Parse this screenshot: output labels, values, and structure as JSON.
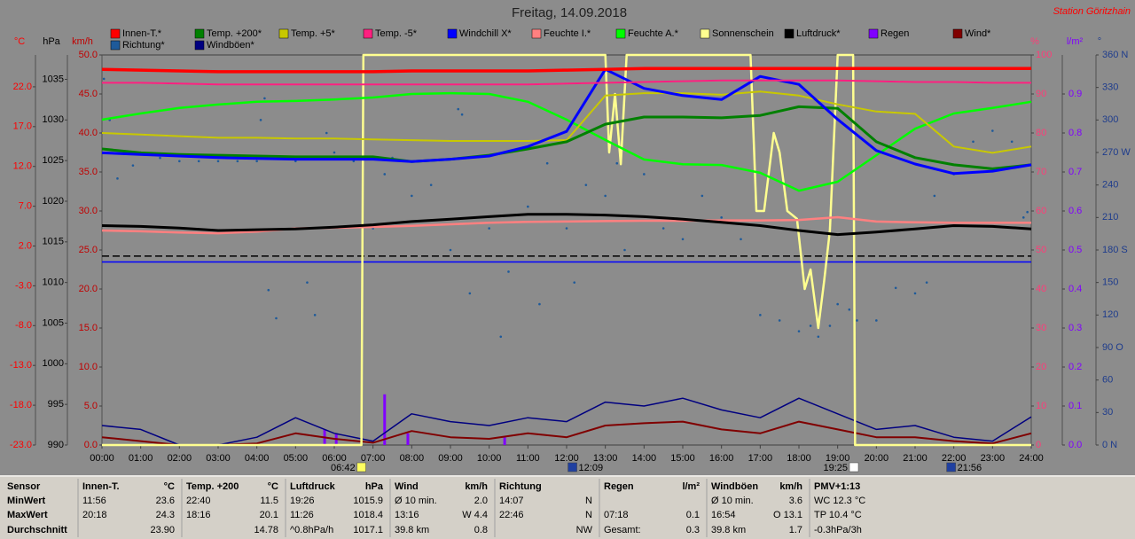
{
  "chart_data": {
    "type": "line",
    "title": "Freitag, 14.09.2018",
    "station": "Station Göritzhain",
    "xlim": [
      0,
      24
    ],
    "xticks": [
      {
        "value": 0,
        "label": "00:00"
      },
      {
        "value": 1,
        "label": "01:00"
      },
      {
        "value": 2,
        "label": "02:00"
      },
      {
        "value": 3,
        "label": "03:00"
      },
      {
        "value": 4,
        "label": "04:00"
      },
      {
        "value": 5,
        "label": "05:00"
      },
      {
        "value": 6,
        "label": "06:00"
      },
      {
        "value": 7,
        "label": "07:00"
      },
      {
        "value": 8,
        "label": "08:00"
      },
      {
        "value": 9,
        "label": "09:00"
      },
      {
        "value": 10,
        "label": "10:00"
      },
      {
        "value": 11,
        "label": "11:00"
      },
      {
        "value": 12,
        "label": "12:00"
      },
      {
        "value": 13,
        "label": "13:00"
      },
      {
        "value": 14,
        "label": "14:00"
      },
      {
        "value": 15,
        "label": "15:00"
      },
      {
        "value": 16,
        "label": "16:00"
      },
      {
        "value": 17,
        "label": "17:00"
      },
      {
        "value": 18,
        "label": "18:00"
      },
      {
        "value": 19,
        "label": "19:00"
      },
      {
        "value": 20,
        "label": "20:00"
      },
      {
        "value": 21,
        "label": "21:00"
      },
      {
        "value": 22,
        "label": "22:00"
      },
      {
        "value": 23,
        "label": "23:00"
      },
      {
        "value": 24,
        "label": "24:00"
      }
    ],
    "x": [
      0,
      1,
      2,
      3,
      4,
      5,
      6,
      7,
      8,
      9,
      10,
      11,
      12,
      13,
      14,
      15,
      16,
      17,
      18,
      19,
      20,
      21,
      22,
      23,
      24
    ],
    "axes": {
      "temp": {
        "label": "°C",
        "side": "left",
        "color": "#ff0000",
        "ylim": [
          -23,
          26
        ],
        "yticks": [
          {
            "value": -23,
            "label": "-23.0"
          },
          {
            "value": -18,
            "label": "-18.0"
          },
          {
            "value": -13,
            "label": "-13.0"
          },
          {
            "value": -8,
            "label": "-8.0"
          },
          {
            "value": -3,
            "label": "-3.0"
          },
          {
            "value": 2,
            "label": "2.0"
          },
          {
            "value": 7,
            "label": "7.0"
          },
          {
            "value": 12,
            "label": "12.0"
          },
          {
            "value": 17,
            "label": "17.0"
          },
          {
            "value": 22,
            "label": "22.0"
          }
        ]
      },
      "press": {
        "label": "hPa",
        "side": "left",
        "color": "#000000",
        "ylim": [
          990,
          1038
        ],
        "yticks": [
          990,
          995,
          1000,
          1005,
          1010,
          1015,
          1020,
          1025,
          1030,
          1035
        ]
      },
      "speed": {
        "label": "km/h",
        "side": "left",
        "color": "#c00000",
        "ylim": [
          0,
          50
        ],
        "yticks": [
          {
            "value": 0,
            "label": "0.0"
          },
          {
            "value": 5,
            "label": "5.0"
          },
          {
            "value": 10,
            "label": "10.0"
          },
          {
            "value": 15,
            "label": "15.0"
          },
          {
            "value": 20,
            "label": "20.0"
          },
          {
            "value": 25,
            "label": "25.0"
          },
          {
            "value": 30,
            "label": "30.0"
          },
          {
            "value": 35,
            "label": "35.0"
          },
          {
            "value": 40,
            "label": "40.0"
          },
          {
            "value": 45,
            "label": "45.0"
          },
          {
            "value": 50,
            "label": "50.0"
          }
        ]
      },
      "hum": {
        "label": "%",
        "side": "right",
        "color": "#ff3c78",
        "ylim": [
          0,
          100
        ],
        "yticks": [
          0,
          10,
          20,
          30,
          40,
          50,
          60,
          70,
          80,
          90,
          100
        ]
      },
      "rain": {
        "label": "l/m²",
        "side": "right",
        "color": "#8000ff",
        "ylim": [
          0,
          1.0
        ],
        "yticks": [
          {
            "value": 0,
            "label": "0.0"
          },
          0.1,
          0.2,
          0.3,
          0.4,
          0.5,
          0.6,
          0.7,
          0.8,
          0.9
        ]
      },
      "dir": {
        "label": "°",
        "side": "right",
        "color": "#1e3c8c",
        "ylim": [
          0,
          360
        ],
        "yticks": [
          {
            "value": 0,
            "label": "0 N"
          },
          30,
          60,
          {
            "value": 90,
            "label": "90 O"
          },
          120,
          150,
          {
            "value": 180,
            "label": "180 S"
          },
          210,
          240,
          {
            "value": 270,
            "label": "270 W"
          },
          300,
          330,
          {
            "value": 360,
            "label": "360 N"
          }
        ]
      }
    },
    "reference_lines": [
      {
        "axis": "press",
        "value": 1013.25,
        "color": "#000000",
        "dashed": true
      },
      {
        "axis": "temp",
        "value": 0,
        "color": "#0000ff",
        "dashed": false
      }
    ],
    "series": [
      {
        "name": "Innen-T.*",
        "axis": "temp",
        "color": "#ff0000",
        "width": 3.5,
        "values": [
          24.2,
          24.1,
          24.0,
          23.9,
          23.9,
          23.9,
          23.9,
          23.9,
          24.0,
          24.0,
          24.0,
          24.0,
          24.1,
          24.2,
          24.3,
          24.3,
          24.3,
          24.3,
          24.3,
          24.3,
          24.3,
          24.3,
          24.3,
          24.3,
          24.3
        ]
      },
      {
        "name": "Temp. +200*",
        "axis": "temp",
        "color": "#008000",
        "width": 3,
        "values": [
          14.2,
          13.7,
          13.5,
          13.4,
          13.3,
          13.2,
          13.2,
          13.2,
          12.6,
          12.9,
          13.4,
          14.2,
          15.1,
          17.3,
          18.2,
          18.2,
          18.1,
          18.4,
          19.5,
          19.3,
          15.1,
          13.1,
          12.2,
          11.7,
          12.2
        ]
      },
      {
        "name": "Temp. +5*",
        "axis": "temp",
        "color": "#c8c800",
        "width": 2,
        "values": [
          16.2,
          16.0,
          15.8,
          15.6,
          15.6,
          15.5,
          15.5,
          15.4,
          15.3,
          15.2,
          15.2,
          15.2,
          15.3,
          20.9,
          21.2,
          21.2,
          21.0,
          21.4,
          20.9,
          19.8,
          18.9,
          18.6,
          14.5,
          13.7,
          14.5
        ]
      },
      {
        "name": "Temp. -5*",
        "axis": "temp",
        "color": "#ff2080",
        "width": 2,
        "values": [
          22.5,
          22.5,
          22.4,
          22.3,
          22.3,
          22.3,
          22.3,
          22.3,
          22.3,
          22.3,
          22.3,
          22.3,
          22.4,
          22.5,
          22.6,
          22.7,
          22.8,
          22.8,
          22.8,
          22.8,
          22.7,
          22.6,
          22.6,
          22.5,
          22.5
        ]
      },
      {
        "name": "Windchill X*",
        "axis": "temp",
        "color": "#0000ff",
        "width": 3,
        "values": [
          13.7,
          13.5,
          13.3,
          13.1,
          13.0,
          12.9,
          12.9,
          12.9,
          12.6,
          12.9,
          13.3,
          14.5,
          16.4,
          24.2,
          21.8,
          20.9,
          20.4,
          23.3,
          22.3,
          17.9,
          14.0,
          12.3,
          11.1,
          11.4,
          12.2
        ]
      },
      {
        "name": "Feuchte I.*",
        "axis": "hum",
        "color": "#ff8080",
        "width": 2.5,
        "values": [
          55.0,
          54.8,
          54.5,
          54.3,
          54.7,
          55.5,
          55.7,
          55.9,
          56.2,
          56.6,
          57.0,
          57.2,
          57.3,
          57.4,
          57.5,
          57.5,
          57.6,
          57.6,
          57.7,
          58.4,
          57.3,
          57.1,
          57.0,
          57.0,
          57.0
        ]
      },
      {
        "name": "Feuchte A.*",
        "axis": "hum",
        "color": "#00ff00",
        "width": 2.5,
        "values": [
          83.4,
          85.0,
          86.4,
          87.3,
          88.0,
          88.2,
          88.6,
          89.1,
          90.0,
          90.2,
          90.0,
          88.0,
          83.4,
          78.2,
          73.2,
          72.0,
          71.8,
          69.8,
          65.2,
          67.5,
          74.3,
          81.1,
          85.0,
          86.4,
          88.0
        ]
      },
      {
        "name": "Sonnenschein",
        "axis": "hum",
        "color": "#ffff90",
        "width": 2.5,
        "x": [
          0,
          6.7,
          6.75,
          13.0,
          13.1,
          13.25,
          13.4,
          13.55,
          16.75,
          16.9,
          17.1,
          17.35,
          17.5,
          17.7,
          17.95,
          18.15,
          18.3,
          18.5,
          18.65,
          18.8,
          19.0,
          19.4,
          19.45,
          24
        ],
        "values": [
          0,
          0,
          100,
          100,
          75,
          90,
          72,
          100,
          100,
          60,
          60,
          80,
          75,
          60,
          58,
          40,
          45,
          30,
          42,
          55,
          100,
          100,
          0,
          0
        ]
      },
      {
        "name": "Luftdruck*",
        "axis": "press",
        "color": "#000000",
        "width": 3,
        "values": [
          1017.0,
          1016.9,
          1016.7,
          1016.4,
          1016.5,
          1016.6,
          1016.8,
          1017.1,
          1017.5,
          1017.8,
          1018.1,
          1018.4,
          1018.4,
          1018.3,
          1018.1,
          1017.8,
          1017.4,
          1017.0,
          1016.4,
          1015.9,
          1016.2,
          1016.6,
          1017.0,
          1016.9,
          1016.6
        ]
      },
      {
        "name": "Regen",
        "axis": "rain",
        "color": "#8000ff",
        "kind": "bar",
        "x": [
          5.75,
          6.05,
          7.3,
          7.9,
          10.4
        ],
        "values": [
          0.04,
          0.03,
          0.13,
          0.03,
          0.02
        ]
      },
      {
        "name": "Wind*",
        "axis": "speed",
        "color": "#800000",
        "width": 2,
        "values": [
          1.0,
          0.5,
          0,
          0,
          0.2,
          1.5,
          0.8,
          0.3,
          1.8,
          1.0,
          0.8,
          1.5,
          1.0,
          2.5,
          2.8,
          3.0,
          2.0,
          1.5,
          3.0,
          2.0,
          1.0,
          1.0,
          0.5,
          0.2,
          1.5
        ]
      },
      {
        "name": "Richtung*",
        "axis": "dir",
        "color": "#1e5a9a",
        "kind": "scatter",
        "x": [
          0.05,
          0.2,
          0.4,
          0.8,
          1.0,
          1.5,
          2.0,
          2.5,
          3.0,
          3.5,
          4.0,
          4.1,
          4.2,
          4.3,
          4.5,
          5.0,
          5.3,
          5.5,
          5.8,
          6.0,
          6.5,
          7.0,
          7.3,
          7.5,
          8.0,
          8.5,
          9.0,
          9.2,
          9.3,
          9.5,
          10.0,
          10.3,
          10.5,
          11.0,
          11.3,
          11.5,
          12.0,
          12.2,
          12.5,
          13.0,
          13.3,
          13.5,
          14.0,
          14.5,
          15.0,
          15.5,
          16.0,
          16.5,
          17.0,
          17.5,
          18.0,
          18.3,
          18.5,
          18.8,
          19.0,
          19.3,
          19.5,
          20.0,
          20.5,
          21.0,
          21.3,
          21.5,
          22.0,
          22.5,
          23.0,
          23.5,
          23.8,
          23.9
        ],
        "values": [
          338,
          300,
          246,
          258,
          270,
          265,
          262,
          262,
          262,
          262,
          262,
          300,
          320,
          143,
          117,
          262,
          150,
          120,
          288,
          270,
          262,
          200,
          250,
          265,
          230,
          240,
          180,
          310,
          305,
          140,
          200,
          100,
          160,
          220,
          130,
          260,
          200,
          150,
          240,
          230,
          260,
          180,
          250,
          200,
          190,
          230,
          210,
          190,
          120,
          115,
          105,
          110,
          100,
          110,
          130,
          125,
          115,
          115,
          145,
          140,
          150,
          230,
          250,
          280,
          290,
          280,
          210,
          215
        ]
      },
      {
        "name": "Windböen*",
        "axis": "speed",
        "color": "#000080",
        "width": 1.5,
        "values": [
          2.5,
          2.0,
          0,
          0,
          1.0,
          3.5,
          1.5,
          0.5,
          4.0,
          3.0,
          2.5,
          3.5,
          3.0,
          5.5,
          5.0,
          6.0,
          4.5,
          3.5,
          6.0,
          4.0,
          2.0,
          2.5,
          1.0,
          0.5,
          3.6
        ]
      }
    ],
    "annotations": [
      {
        "x": 6.7,
        "label": "06:42",
        "color": "#ffff60"
      },
      {
        "x": 12.15,
        "label": "12:09",
        "color": "#2040a0"
      },
      {
        "x": 19.42,
        "label": "19:25",
        "color": "#ffffff"
      },
      {
        "x": 21.93,
        "label": "21:56",
        "color": "#2040a0"
      }
    ]
  },
  "table": {
    "row_labels": [
      "Sensor",
      "MinWert",
      "MaxWert",
      "Durchschnitt"
    ],
    "columns": [
      {
        "name": "Innen-T.",
        "unit": "°C",
        "rows": [
          [
            "11:56",
            "23.6"
          ],
          [
            "20:18",
            "24.3"
          ],
          [
            null,
            "23.90"
          ]
        ]
      },
      {
        "name": "Temp. +200",
        "unit": "°C",
        "rows": [
          [
            "22:40",
            "11.5"
          ],
          [
            "18:16",
            "20.1"
          ],
          [
            null,
            "14.78"
          ]
        ]
      },
      {
        "name": "Luftdruck",
        "unit": "hPa",
        "rows": [
          [
            "19:26",
            "1015.9"
          ],
          [
            "11:26",
            "1018.4"
          ],
          [
            "^0.8hPa/h",
            "1017.1"
          ]
        ]
      },
      {
        "name": "Wind",
        "unit": "km/h",
        "rows": [
          [
            "Ø 10 min.",
            "2.0"
          ],
          [
            "13:16",
            "W 4.4"
          ],
          [
            "39.8 km",
            "0.8"
          ]
        ]
      },
      {
        "name": "Richtung",
        "unit": null,
        "rows": [
          [
            "14:07",
            "N"
          ],
          [
            "22:46",
            "N"
          ],
          [
            null,
            "NW"
          ]
        ]
      },
      {
        "name": "Regen",
        "unit": "l/m²",
        "rows": [
          [
            null,
            null
          ],
          [
            "07:18",
            "0.1"
          ],
          [
            "Gesamt:",
            "0.3"
          ]
        ]
      },
      {
        "name": "Windböen",
        "unit": "km/h",
        "rows": [
          [
            "Ø 10 min.",
            "3.6"
          ],
          [
            "16:54",
            "O 13.1"
          ],
          [
            "39.8 km",
            "1.7"
          ]
        ]
      },
      {
        "name": "PMV+1:13",
        "unit": null,
        "rows": [
          [
            "WC 12.3 °C",
            null
          ],
          [
            "TP 10.4 °C",
            null
          ],
          [
            "-0.3hPa/3h",
            null
          ]
        ]
      }
    ]
  }
}
